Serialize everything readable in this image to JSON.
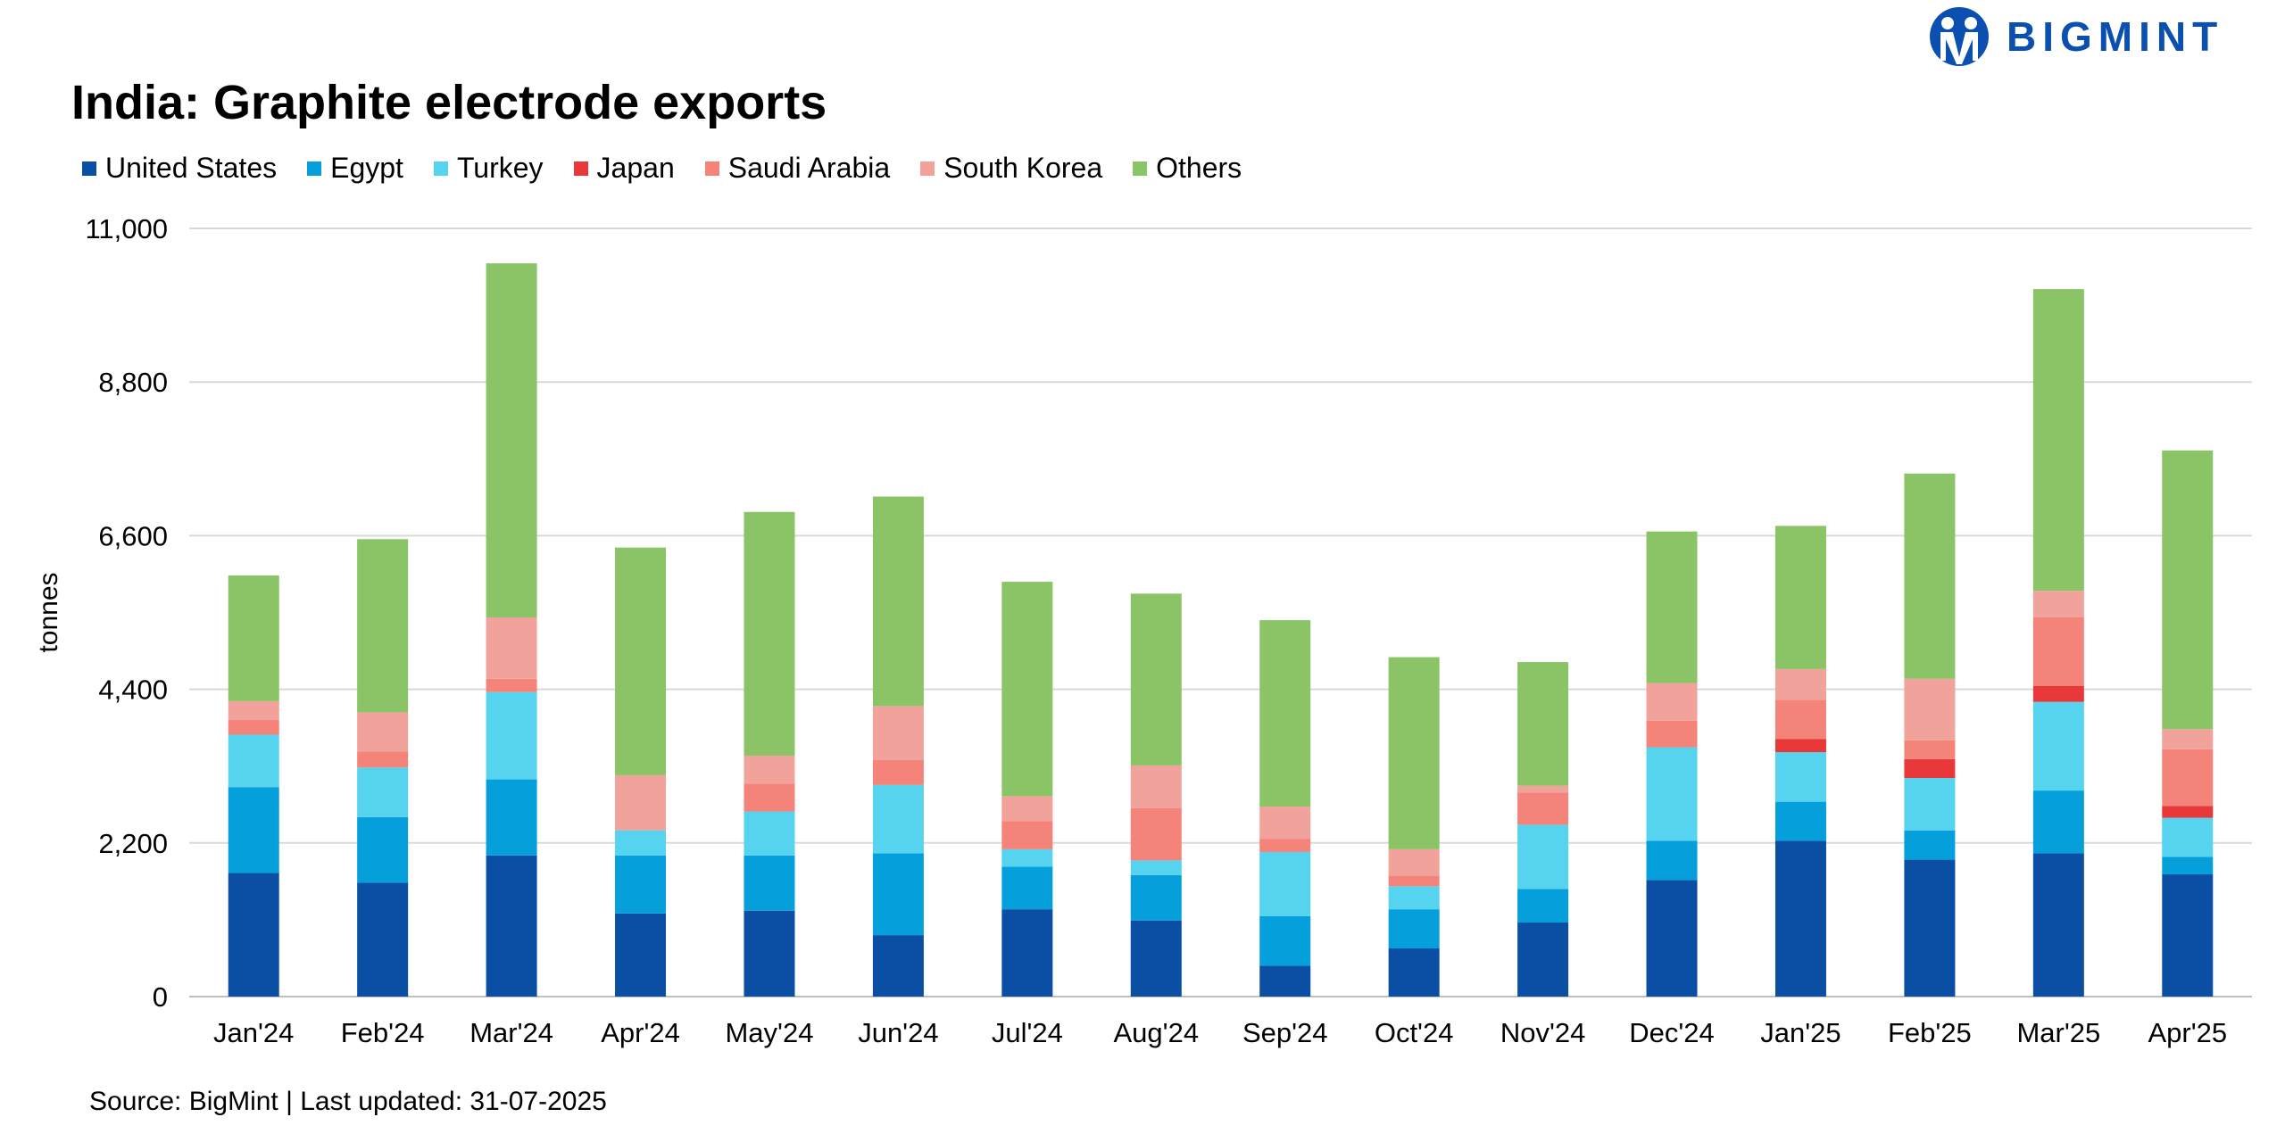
{
  "logo": {
    "text": "BIGMINT"
  },
  "source": "Source: BigMint | Last updated: 31-07-2025",
  "chart_data": {
    "type": "bar",
    "stacked": true,
    "title": "India: Graphite electrode exports",
    "xlabel": "",
    "ylabel": "tonnes",
    "ylim": [
      0,
      11000
    ],
    "yticks": [
      0,
      2200,
      4400,
      6600,
      8800,
      11000
    ],
    "ytick_labels": [
      "0",
      "2,200",
      "4,400",
      "6,600",
      "8,800",
      "11,000"
    ],
    "grid": true,
    "legend_position": "top-left",
    "categories": [
      "Jan'24",
      "Feb'24",
      "Mar'24",
      "Apr'24",
      "May'24",
      "Jun'24",
      "Jul'24",
      "Aug'24",
      "Sep'24",
      "Oct'24",
      "Nov'24",
      "Dec'24",
      "Jan'25",
      "Feb'25",
      "Mar'25",
      "Apr'25"
    ],
    "series": [
      {
        "name": "United States",
        "color": "#0a4fa3",
        "values": [
          1770,
          1630,
          2020,
          1190,
          1230,
          880,
          1250,
          1090,
          440,
          690,
          1060,
          1670,
          2230,
          1960,
          2050,
          1750
        ]
      },
      {
        "name": "Egypt",
        "color": "#05a0dc",
        "values": [
          1230,
          940,
          1090,
          830,
          790,
          1170,
          610,
          650,
          710,
          560,
          480,
          560,
          560,
          420,
          900,
          250
        ]
      },
      {
        "name": "Turkey",
        "color": "#55d3ef",
        "values": [
          750,
          710,
          1250,
          360,
          630,
          980,
          250,
          210,
          920,
          330,
          920,
          1340,
          710,
          750,
          1270,
          560
        ]
      },
      {
        "name": "Japan",
        "color": "#e8383a",
        "values": [
          0,
          0,
          0,
          0,
          0,
          0,
          0,
          0,
          0,
          0,
          0,
          0,
          190,
          270,
          230,
          170
        ]
      },
      {
        "name": "Saudi Arabia",
        "color": "#f4837a",
        "values": [
          210,
          230,
          190,
          0,
          400,
          360,
          400,
          750,
          190,
          150,
          460,
          380,
          560,
          270,
          980,
          810
        ]
      },
      {
        "name": "South Korea",
        "color": "#f0a29b",
        "values": [
          270,
          560,
          880,
          790,
          400,
          770,
          360,
          610,
          460,
          380,
          100,
          540,
          440,
          880,
          380,
          290
        ]
      },
      {
        "name": "Others",
        "color": "#8ac466",
        "values": [
          1800,
          2480,
          5070,
          3260,
          3490,
          3000,
          3070,
          2460,
          2670,
          2750,
          1770,
          2170,
          2050,
          2940,
          4320,
          3990
        ]
      }
    ]
  }
}
